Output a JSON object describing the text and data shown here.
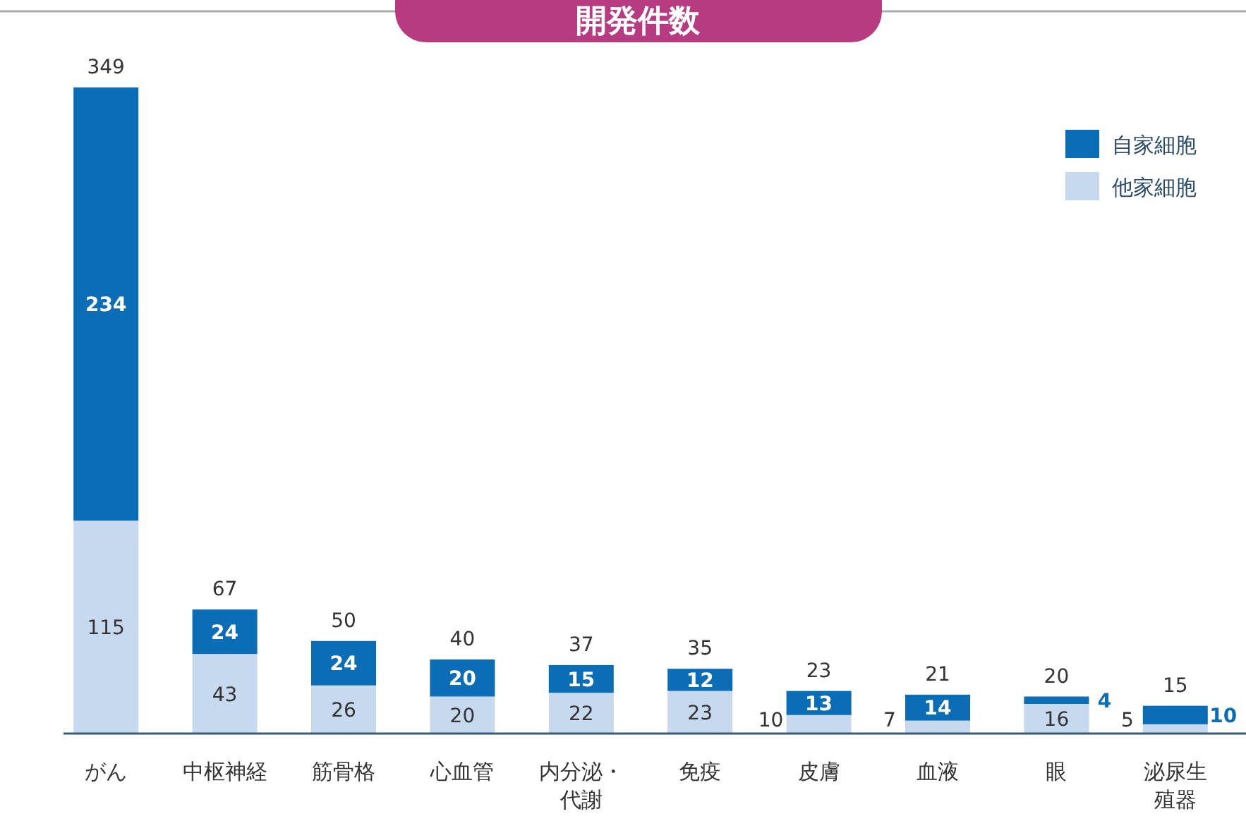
{
  "chart_data": {
    "type": "bar",
    "title": "開発件数",
    "stacked": true,
    "data_labels": true,
    "legend": "top right",
    "categories": [
      "がん",
      "中枢神経",
      "筋骨格",
      "心血管",
      "内分泌・代謝",
      "免疫",
      "皮膚",
      "血液",
      "眼",
      "泌尿生殖器"
    ],
    "series": [
      {
        "name": "他家細胞",
        "color": "#c6d9ee",
        "values": [
          115,
          43,
          26,
          20,
          22,
          23,
          10,
          7,
          16,
          5
        ]
      },
      {
        "name": "自家細胞",
        "color": "#0b6db6",
        "values": [
          234,
          24,
          24,
          20,
          15,
          12,
          13,
          14,
          4,
          10
        ]
      }
    ],
    "totals": [
      "349",
      "67",
      "50",
      "40",
      "37",
      "35",
      "23",
      "21",
      "20",
      "15"
    ]
  }
}
